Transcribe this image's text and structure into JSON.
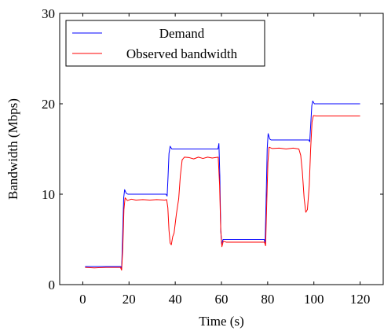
{
  "chart_data": {
    "type": "line",
    "xlabel": "Time (s)",
    "ylabel": "Bandwidth (Mbps)",
    "xlim": [
      -10,
      130
    ],
    "ylim": [
      0,
      30
    ],
    "x_ticks": [
      0,
      20,
      40,
      60,
      80,
      100,
      120
    ],
    "y_ticks": [
      0,
      10,
      20,
      30
    ],
    "grid": false,
    "legend_position": "top-left",
    "series": [
      {
        "name": "Demand",
        "color": "#0000ff",
        "points": [
          [
            1,
            2
          ],
          [
            16.5,
            2
          ],
          [
            16.8,
            1.7
          ],
          [
            17.2,
            5
          ],
          [
            17.7,
            9.6
          ],
          [
            18.1,
            10.5
          ],
          [
            18.8,
            10.1
          ],
          [
            19.5,
            10
          ],
          [
            36,
            10
          ],
          [
            36.5,
            9.8
          ],
          [
            36.9,
            12
          ],
          [
            37.3,
            14.5
          ],
          [
            37.8,
            15.3
          ],
          [
            38.5,
            15
          ],
          [
            58.5,
            15
          ],
          [
            58.9,
            15.6
          ],
          [
            59.3,
            12
          ],
          [
            59.7,
            6
          ],
          [
            60.1,
            4.5
          ],
          [
            60.7,
            5
          ],
          [
            78.5,
            5
          ],
          [
            78.9,
            4.6
          ],
          [
            79.3,
            9
          ],
          [
            79.8,
            15
          ],
          [
            80.2,
            16.7
          ],
          [
            80.9,
            16.1
          ],
          [
            81.5,
            16
          ],
          [
            97.8,
            16
          ],
          [
            98.2,
            15.8
          ],
          [
            98.7,
            18
          ],
          [
            99.1,
            19.8
          ],
          [
            99.5,
            20.3
          ],
          [
            100.2,
            20
          ],
          [
            120,
            20
          ]
        ]
      },
      {
        "name": "Observed bandwidth",
        "color": "#ff0000",
        "points": [
          [
            1,
            1.9
          ],
          [
            5,
            1.85
          ],
          [
            10,
            1.9
          ],
          [
            16.3,
            1.9
          ],
          [
            16.8,
            1.6
          ],
          [
            17.3,
            4
          ],
          [
            17.8,
            8.3
          ],
          [
            18.3,
            9.6
          ],
          [
            19.3,
            9.3
          ],
          [
            21,
            9.45
          ],
          [
            23,
            9.35
          ],
          [
            26,
            9.4
          ],
          [
            29,
            9.35
          ],
          [
            32,
            9.4
          ],
          [
            35.5,
            9.35
          ],
          [
            36.3,
            9.4
          ],
          [
            36.8,
            8.5
          ],
          [
            37.3,
            6
          ],
          [
            37.8,
            4.6
          ],
          [
            38.3,
            4.4
          ],
          [
            38.9,
            5.3
          ],
          [
            39.5,
            5.7
          ],
          [
            40.5,
            7.8
          ],
          [
            41.5,
            9.5
          ],
          [
            42.2,
            12
          ],
          [
            43,
            13.8
          ],
          [
            44,
            14.1
          ],
          [
            46,
            14.05
          ],
          [
            48,
            13.9
          ],
          [
            50,
            14.1
          ],
          [
            52,
            13.95
          ],
          [
            54,
            14.1
          ],
          [
            56,
            14.0
          ],
          [
            58.6,
            14.1
          ],
          [
            59.2,
            11
          ],
          [
            59.7,
            6
          ],
          [
            60.2,
            4.2
          ],
          [
            60.8,
            4.8
          ],
          [
            62,
            4.7
          ],
          [
            70,
            4.7
          ],
          [
            78.6,
            4.7
          ],
          [
            79.1,
            4.3
          ],
          [
            79.6,
            9
          ],
          [
            80.1,
            13.5
          ],
          [
            80.6,
            15.2
          ],
          [
            82,
            15.05
          ],
          [
            85,
            15.1
          ],
          [
            88,
            15.0
          ],
          [
            91,
            15.1
          ],
          [
            93.5,
            15.0
          ],
          [
            94.3,
            14.3
          ],
          [
            95,
            12.5
          ],
          [
            95.8,
            9.5
          ],
          [
            96.5,
            8
          ],
          [
            97.2,
            8.3
          ],
          [
            98,
            11
          ],
          [
            98.6,
            15
          ],
          [
            99.2,
            18
          ],
          [
            99.8,
            18.7
          ],
          [
            101,
            18.65
          ],
          [
            110,
            18.65
          ],
          [
            120,
            18.65
          ]
        ]
      }
    ]
  }
}
